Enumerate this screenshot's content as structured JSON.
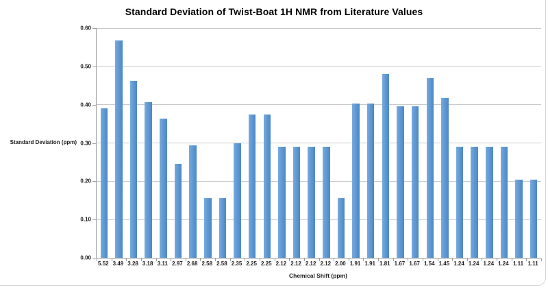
{
  "chart_data": {
    "type": "bar",
    "title": "Standard Deviation of Twist-Boat 1H NMR from Literature Values",
    "xlabel": "Chemical Shift (ppm)",
    "ylabel": "Standard Deviation (ppm)",
    "categories": [
      "5.52",
      "3.49",
      "3.28",
      "3.18",
      "3.11",
      "2.97",
      "2.68",
      "2.58",
      "2.58",
      "2.35",
      "2.25",
      "2.25",
      "2.12",
      "2.12",
      "2.12",
      "2.12",
      "2.00",
      "1.91",
      "1.91",
      "1.81",
      "1.67",
      "1.67",
      "1.54",
      "1.45",
      "1.24",
      "1.24",
      "1.24",
      "1.24",
      "1.11",
      "1.11"
    ],
    "values": [
      0.39,
      0.567,
      0.462,
      0.406,
      0.363,
      0.245,
      0.294,
      0.156,
      0.156,
      0.3,
      0.375,
      0.375,
      0.29,
      0.29,
      0.29,
      0.29,
      0.155,
      0.403,
      0.403,
      0.48,
      0.396,
      0.396,
      0.47,
      0.418,
      0.29,
      0.29,
      0.29,
      0.29,
      0.205,
      0.205
    ],
    "ylim": [
      0,
      0.6
    ],
    "yticks": [
      "0.00",
      "0.10",
      "0.20",
      "0.30",
      "0.40",
      "0.50",
      "0.60"
    ],
    "grid": "horizontal",
    "legend": "none",
    "colors": {
      "bar_light": "#79aadd",
      "bar_mid": "#5e99d3",
      "bar_dark": "#4d87c6",
      "gridline": "#c9c9c9",
      "axis": "#9e9e9e",
      "text": "#1a1a1a"
    }
  }
}
